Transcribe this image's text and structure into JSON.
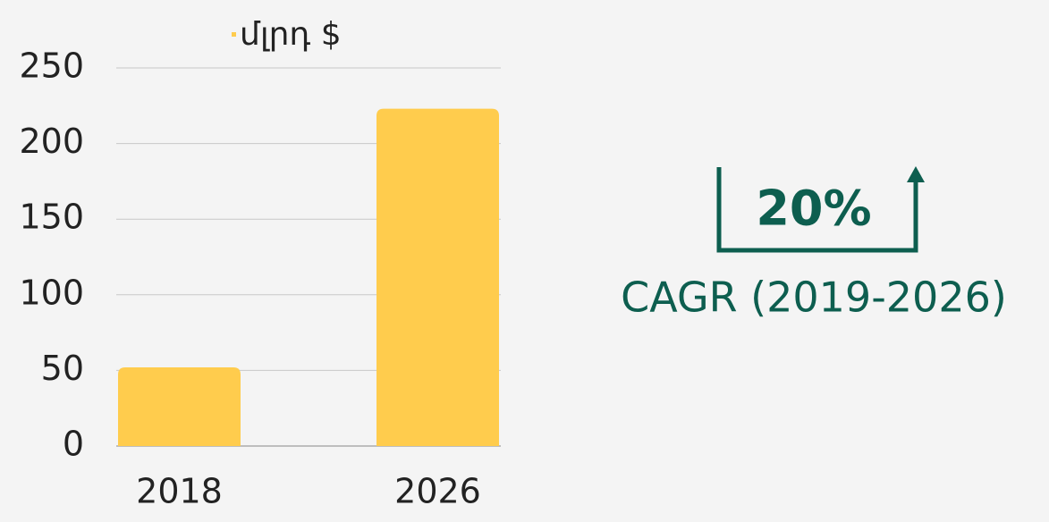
{
  "chart_data": {
    "type": "bar",
    "categories": [
      "2018",
      "2026"
    ],
    "series": [
      {
        "name": "մլրդ $",
        "color": "#ffcc4d",
        "values": [
          52,
          223
        ]
      }
    ],
    "ylim": [
      0,
      250
    ],
    "yticks": [
      0,
      50,
      100,
      150,
      200,
      250
    ],
    "grid": true,
    "annotations": [
      "20%",
      "CAGR (2019-2026)"
    ]
  }
}
